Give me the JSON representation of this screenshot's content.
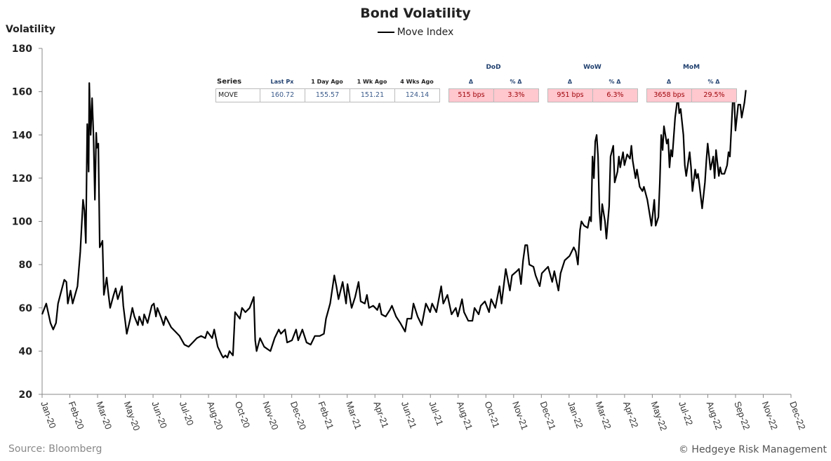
{
  "chart_data": {
    "type": "line",
    "title": "Bond Volatility",
    "ylabel": "Volatility",
    "xlabel": "",
    "ylim": [
      20,
      180
    ],
    "yticks": [
      20,
      40,
      60,
      80,
      100,
      120,
      140,
      160,
      180
    ],
    "xlim": [
      "2020-01-02",
      "2022-12-16"
    ],
    "xtick_labels": [
      "Jan-20",
      "Feb-20",
      "Mar-20",
      "May-20",
      "Jun-20",
      "Jul-20",
      "Aug-20",
      "Oct-20",
      "Nov-20",
      "Dec-20",
      "Feb-21",
      "Mar-21",
      "Apr-21",
      "Jun-21",
      "Jul-21",
      "Aug-21",
      "Oct-21",
      "Nov-21",
      "Dec-21",
      "Jan-22",
      "Mar-22",
      "Apr-22",
      "May-22",
      "Jul-22",
      "Aug-22",
      "Sep-22",
      "Nov-22",
      "Dec-22"
    ],
    "grid": false,
    "legend_position": "top-center",
    "series": [
      {
        "name": "Move Index",
        "color": "#000000",
        "points": [
          [
            "2020-01-02",
            57
          ],
          [
            "2020-01-08",
            62
          ],
          [
            "2020-01-14",
            53
          ],
          [
            "2020-01-18",
            50
          ],
          [
            "2020-01-22",
            53
          ],
          [
            "2020-01-25",
            62
          ],
          [
            "2020-01-29",
            67
          ],
          [
            "2020-02-03",
            73
          ],
          [
            "2020-02-06",
            72
          ],
          [
            "2020-02-08",
            62
          ],
          [
            "2020-02-12",
            68
          ],
          [
            "2020-02-15",
            62
          ],
          [
            "2020-02-22",
            70
          ],
          [
            "2020-02-26",
            86
          ],
          [
            "2020-03-01",
            110
          ],
          [
            "2020-03-03",
            105
          ],
          [
            "2020-03-05",
            90
          ],
          [
            "2020-03-07",
            145
          ],
          [
            "2020-03-09",
            123
          ],
          [
            "2020-03-10",
            164
          ],
          [
            "2020-03-12",
            140
          ],
          [
            "2020-03-14",
            157
          ],
          [
            "2020-03-16",
            140
          ],
          [
            "2020-03-18",
            110
          ],
          [
            "2020-03-20",
            141
          ],
          [
            "2020-03-21",
            134
          ],
          [
            "2020-03-23",
            136
          ],
          [
            "2020-03-25",
            88
          ],
          [
            "2020-03-29",
            91
          ],
          [
            "2020-03-31",
            66
          ],
          [
            "2020-04-04",
            74
          ],
          [
            "2020-04-06",
            68
          ],
          [
            "2020-04-09",
            60
          ],
          [
            "2020-04-14",
            66
          ],
          [
            "2020-04-17",
            69
          ],
          [
            "2020-04-20",
            64
          ],
          [
            "2020-04-26",
            70
          ],
          [
            "2020-04-28",
            61
          ],
          [
            "2020-05-03",
            48
          ],
          [
            "2020-05-08",
            55
          ],
          [
            "2020-05-11",
            60
          ],
          [
            "2020-05-14",
            56
          ],
          [
            "2020-05-19",
            52
          ],
          [
            "2020-05-21",
            56
          ],
          [
            "2020-05-26",
            52
          ],
          [
            "2020-05-28",
            57
          ],
          [
            "2020-06-02",
            53
          ],
          [
            "2020-06-08",
            61
          ],
          [
            "2020-06-11",
            62
          ],
          [
            "2020-06-14",
            56
          ],
          [
            "2020-06-16",
            60
          ],
          [
            "2020-06-22",
            55
          ],
          [
            "2020-06-25",
            52
          ],
          [
            "2020-06-28",
            56
          ],
          [
            "2020-07-06",
            51
          ],
          [
            "2020-07-12",
            49
          ],
          [
            "2020-07-18",
            47
          ],
          [
            "2020-07-25",
            43
          ],
          [
            "2020-07-31",
            42
          ],
          [
            "2020-08-06",
            44
          ],
          [
            "2020-08-12",
            46
          ],
          [
            "2020-08-18",
            47
          ],
          [
            "2020-08-24",
            46
          ],
          [
            "2020-08-27",
            49
          ],
          [
            "2020-09-03",
            46
          ],
          [
            "2020-09-06",
            50
          ],
          [
            "2020-09-11",
            42
          ],
          [
            "2020-09-17",
            38
          ],
          [
            "2020-09-19",
            37
          ],
          [
            "2020-09-22",
            38
          ],
          [
            "2020-09-25",
            37
          ],
          [
            "2020-09-28",
            40
          ],
          [
            "2020-10-03",
            38
          ],
          [
            "2020-10-06",
            58
          ],
          [
            "2020-10-13",
            55
          ],
          [
            "2020-10-16",
            60
          ],
          [
            "2020-10-21",
            58
          ],
          [
            "2020-10-27",
            60
          ],
          [
            "2020-11-02",
            65
          ],
          [
            "2020-11-04",
            45
          ],
          [
            "2020-11-06",
            40
          ],
          [
            "2020-11-11",
            46
          ],
          [
            "2020-11-17",
            42
          ],
          [
            "2020-11-26",
            40
          ],
          [
            "2020-12-02",
            46
          ],
          [
            "2020-12-08",
            50
          ],
          [
            "2020-12-11",
            48
          ],
          [
            "2020-12-17",
            50
          ],
          [
            "2020-12-20",
            44
          ],
          [
            "2020-12-27",
            45
          ],
          [
            "2021-01-02",
            50
          ],
          [
            "2021-01-05",
            45
          ],
          [
            "2021-01-11",
            50
          ],
          [
            "2021-01-17",
            44
          ],
          [
            "2021-01-23",
            43
          ],
          [
            "2021-01-29",
            47
          ],
          [
            "2021-02-05",
            47
          ],
          [
            "2021-02-11",
            48
          ],
          [
            "2021-02-14",
            55
          ],
          [
            "2021-02-20",
            62
          ],
          [
            "2021-02-26",
            75
          ],
          [
            "2021-03-01",
            70
          ],
          [
            "2021-03-04",
            64
          ],
          [
            "2021-03-10",
            72
          ],
          [
            "2021-03-15",
            62
          ],
          [
            "2021-03-17",
            71
          ],
          [
            "2021-03-23",
            60
          ],
          [
            "2021-03-28",
            65
          ],
          [
            "2021-04-02",
            72
          ],
          [
            "2021-04-05",
            63
          ],
          [
            "2021-04-11",
            62
          ],
          [
            "2021-04-14",
            66
          ],
          [
            "2021-04-17",
            60
          ],
          [
            "2021-04-23",
            61
          ],
          [
            "2021-04-29",
            59
          ],
          [
            "2021-05-02",
            62
          ],
          [
            "2021-05-05",
            57
          ],
          [
            "2021-05-11",
            56
          ],
          [
            "2021-05-17",
            59
          ],
          [
            "2021-05-20",
            61
          ],
          [
            "2021-05-26",
            56
          ],
          [
            "2021-06-01",
            53
          ],
          [
            "2021-06-08",
            49
          ],
          [
            "2021-06-11",
            55
          ],
          [
            "2021-06-17",
            55
          ],
          [
            "2021-06-20",
            62
          ],
          [
            "2021-06-26",
            56
          ],
          [
            "2021-07-02",
            52
          ],
          [
            "2021-07-08",
            62
          ],
          [
            "2021-07-14",
            58
          ],
          [
            "2021-07-17",
            62
          ],
          [
            "2021-07-23",
            58
          ],
          [
            "2021-07-30",
            70
          ],
          [
            "2021-08-02",
            62
          ],
          [
            "2021-08-08",
            66
          ],
          [
            "2021-08-14",
            57
          ],
          [
            "2021-08-20",
            60
          ],
          [
            "2021-08-23",
            56
          ],
          [
            "2021-08-29",
            64
          ],
          [
            "2021-09-01",
            58
          ],
          [
            "2021-09-07",
            54
          ],
          [
            "2021-09-13",
            54
          ],
          [
            "2021-09-16",
            60
          ],
          [
            "2021-09-22",
            57
          ],
          [
            "2021-09-25",
            61
          ],
          [
            "2021-10-01",
            63
          ],
          [
            "2021-10-07",
            58
          ],
          [
            "2021-10-10",
            64
          ],
          [
            "2021-10-16",
            60
          ],
          [
            "2021-10-22",
            70
          ],
          [
            "2021-10-25",
            62
          ],
          [
            "2021-10-31",
            78
          ],
          [
            "2021-11-06",
            68
          ],
          [
            "2021-11-09",
            75
          ],
          [
            "2021-11-16",
            77
          ],
          [
            "2021-11-19",
            78
          ],
          [
            "2021-11-22",
            71
          ],
          [
            "2021-11-25",
            82
          ],
          [
            "2021-11-28",
            89
          ],
          [
            "2021-12-01",
            89
          ],
          [
            "2021-12-04",
            80
          ],
          [
            "2021-12-10",
            79
          ],
          [
            "2021-12-13",
            75
          ],
          [
            "2021-12-19",
            70
          ],
          [
            "2021-12-22",
            76
          ],
          [
            "2021-12-28",
            78
          ],
          [
            "2021-12-31",
            79
          ],
          [
            "2022-01-06",
            72
          ],
          [
            "2022-01-09",
            77
          ],
          [
            "2022-01-15",
            68
          ],
          [
            "2022-01-18",
            76
          ],
          [
            "2022-01-24",
            82
          ],
          [
            "2022-01-31",
            84
          ],
          [
            "2022-02-06",
            88
          ],
          [
            "2022-02-09",
            86
          ],
          [
            "2022-02-12",
            80
          ],
          [
            "2022-02-15",
            96
          ],
          [
            "2022-02-17",
            100
          ],
          [
            "2022-02-21",
            98
          ],
          [
            "2022-02-26",
            97
          ],
          [
            "2022-03-01",
            102
          ],
          [
            "2022-03-03",
            100
          ],
          [
            "2022-03-05",
            130
          ],
          [
            "2022-03-07",
            120
          ],
          [
            "2022-03-09",
            137
          ],
          [
            "2022-03-11",
            140
          ],
          [
            "2022-03-13",
            130
          ],
          [
            "2022-03-15",
            105
          ],
          [
            "2022-03-17",
            96
          ],
          [
            "2022-03-19",
            108
          ],
          [
            "2022-03-23",
            100
          ],
          [
            "2022-03-25",
            92
          ],
          [
            "2022-03-29",
            107
          ],
          [
            "2022-03-31",
            130
          ],
          [
            "2022-04-04",
            135
          ],
          [
            "2022-04-06",
            118
          ],
          [
            "2022-04-10",
            123
          ],
          [
            "2022-04-12",
            130
          ],
          [
            "2022-04-14",
            125
          ],
          [
            "2022-04-18",
            132
          ],
          [
            "2022-04-20",
            126
          ],
          [
            "2022-04-24",
            131
          ],
          [
            "2022-04-28",
            129
          ],
          [
            "2022-04-30",
            135
          ],
          [
            "2022-05-02",
            128
          ],
          [
            "2022-05-06",
            120
          ],
          [
            "2022-05-08",
            124
          ],
          [
            "2022-05-12",
            116
          ],
          [
            "2022-05-16",
            114
          ],
          [
            "2022-05-18",
            116
          ],
          [
            "2022-05-23",
            110
          ],
          [
            "2022-05-27",
            102
          ],
          [
            "2022-05-29",
            98
          ],
          [
            "2022-06-02",
            110
          ],
          [
            "2022-06-04",
            98
          ],
          [
            "2022-06-08",
            102
          ],
          [
            "2022-06-10",
            118
          ],
          [
            "2022-06-12",
            140
          ],
          [
            "2022-06-14",
            133
          ],
          [
            "2022-06-16",
            144
          ],
          [
            "2022-06-20",
            136
          ],
          [
            "2022-06-22",
            138
          ],
          [
            "2022-06-24",
            125
          ],
          [
            "2022-06-26",
            133
          ],
          [
            "2022-06-28",
            130
          ],
          [
            "2022-07-02",
            148
          ],
          [
            "2022-07-06",
            158
          ],
          [
            "2022-07-08",
            150
          ],
          [
            "2022-07-10",
            152
          ],
          [
            "2022-07-14",
            140
          ],
          [
            "2022-07-16",
            126
          ],
          [
            "2022-07-18",
            121
          ],
          [
            "2022-07-23",
            132
          ],
          [
            "2022-07-25",
            125
          ],
          [
            "2022-07-27",
            114
          ],
          [
            "2022-07-31",
            124
          ],
          [
            "2022-08-02",
            120
          ],
          [
            "2022-08-04",
            122
          ],
          [
            "2022-08-06",
            117
          ],
          [
            "2022-08-10",
            106
          ],
          [
            "2022-08-14",
            118
          ],
          [
            "2022-08-16",
            128
          ],
          [
            "2022-08-18",
            136
          ],
          [
            "2022-08-22",
            124
          ],
          [
            "2022-08-26",
            130
          ],
          [
            "2022-08-28",
            120
          ],
          [
            "2022-08-30",
            133
          ],
          [
            "2022-09-03",
            121
          ],
          [
            "2022-09-05",
            125
          ],
          [
            "2022-09-07",
            122
          ],
          [
            "2022-09-11",
            122
          ],
          [
            "2022-09-15",
            126
          ],
          [
            "2022-09-17",
            132
          ],
          [
            "2022-09-19",
            130
          ],
          [
            "2022-09-23",
            155
          ],
          [
            "2022-09-25",
            158
          ],
          [
            "2022-09-27",
            142
          ],
          [
            "2022-10-01",
            154
          ],
          [
            "2022-10-04",
            154
          ],
          [
            "2022-10-06",
            148
          ],
          [
            "2022-10-10",
            155
          ],
          [
            "2022-10-12",
            160.72
          ]
        ]
      }
    ]
  },
  "stats_table": {
    "headers": {
      "series": "Series",
      "last_px": "Last Px",
      "day_ago": "1 Day Ago",
      "wk_ago": "1 Wk Ago",
      "wks4_ago": "4 Wks Ago"
    },
    "groups": {
      "dod": "DoD",
      "wow": "WoW",
      "mom": "MoM"
    },
    "delta_label": "Δ",
    "pct_delta_label": "% Δ",
    "row": {
      "series": "MOVE",
      "last_px": "160.72",
      "day_ago": "155.57",
      "wk_ago": "151.21",
      "wks4_ago": "124.14",
      "dod_delta": "515 bps",
      "dod_pct": "3.3%",
      "wow_delta": "951 bps",
      "wow_pct": "6.3%",
      "mom_delta": "3658 bps",
      "mom_pct": "29.5%"
    },
    "highlight_color": "#ffc7ce"
  },
  "footer": {
    "source": "Source: Bloomberg",
    "copyright": "© Hedgeye Risk Management"
  }
}
